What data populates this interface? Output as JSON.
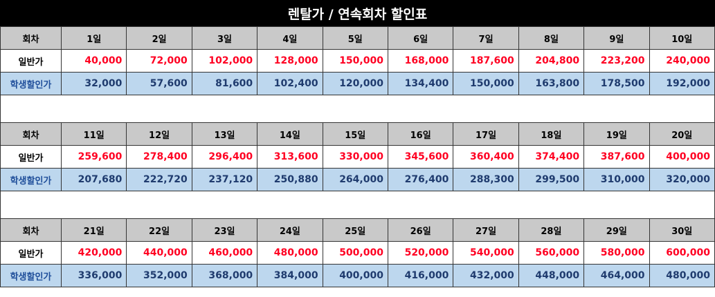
{
  "title": "렌탈가 / 연속회차 할인표",
  "labels": {
    "header": "회차",
    "regular": "일반가",
    "student": "학생할인가"
  },
  "colors": {
    "regular_price": "#ff0022",
    "student_price": "#1f3b6e",
    "header_bg": "#c9c9c9",
    "student_bg": "#bdd7ee"
  },
  "blocks": [
    {
      "days": [
        "1일",
        "2일",
        "3일",
        "4일",
        "5일",
        "6일",
        "7일",
        "8일",
        "9일",
        "10일"
      ],
      "regular": [
        "40,000",
        "72,000",
        "102,000",
        "128,000",
        "150,000",
        "168,000",
        "187,600",
        "204,800",
        "223,200",
        "240,000"
      ],
      "student": [
        "32,000",
        "57,600",
        "81,600",
        "102,400",
        "120,000",
        "134,400",
        "150,000",
        "163,800",
        "178,500",
        "192,000"
      ]
    },
    {
      "days": [
        "11일",
        "12일",
        "13일",
        "14일",
        "15일",
        "16일",
        "17일",
        "18일",
        "19일",
        "20일"
      ],
      "regular": [
        "259,600",
        "278,400",
        "296,400",
        "313,600",
        "330,000",
        "345,600",
        "360,400",
        "374,400",
        "387,600",
        "400,000"
      ],
      "student": [
        "207,680",
        "222,720",
        "237,120",
        "250,880",
        "264,000",
        "276,400",
        "288,300",
        "299,500",
        "310,000",
        "320,000"
      ]
    },
    {
      "days": [
        "21일",
        "22일",
        "23일",
        "24일",
        "25일",
        "26일",
        "27일",
        "28일",
        "29일",
        "30일"
      ],
      "regular": [
        "420,000",
        "440,000",
        "460,000",
        "480,000",
        "500,000",
        "520,000",
        "540,000",
        "560,000",
        "580,000",
        "600,000"
      ],
      "student": [
        "336,000",
        "352,000",
        "368,000",
        "384,000",
        "400,000",
        "416,000",
        "432,000",
        "448,000",
        "464,000",
        "480,000"
      ]
    }
  ]
}
